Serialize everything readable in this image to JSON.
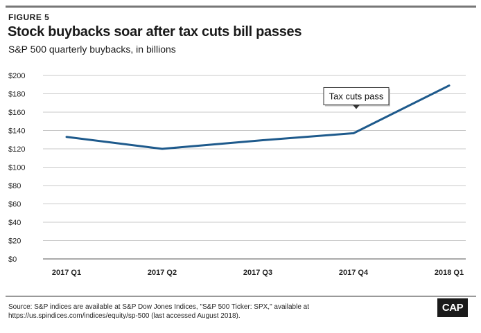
{
  "figure_label": "FIGURE 5",
  "source_note": "Source: S&P indices are available at S&P Dow Jones Indices, \"S&P 500 Ticker: SPX,\" available at https://us.spindices.com/indices/equity/sp-500 (last accessed August 2018).",
  "logo_text": "CAP",
  "colors": {
    "line": "#1e5a8c",
    "grid": "#c8c8c8"
  },
  "chart_data": {
    "type": "line",
    "title": "Stock buybacks soar after tax cuts bill passes",
    "subtitle": "S&P 500 quarterly buybacks, in billions",
    "categories": [
      "2017 Q1",
      "2017 Q2",
      "2017 Q3",
      "2017 Q4",
      "2018 Q1"
    ],
    "series": [
      {
        "values": [
          133,
          120,
          129,
          137,
          189
        ]
      }
    ],
    "ylim": [
      0,
      200
    ],
    "yticks": [
      0,
      20,
      40,
      60,
      80,
      100,
      120,
      140,
      160,
      180,
      200
    ],
    "ytick_labels": [
      "$0",
      "$20",
      "$40",
      "$60",
      "$80",
      "$100",
      "$120",
      "$140",
      "$160",
      "$180",
      "$200"
    ],
    "grid": true,
    "annotations": [
      {
        "text": "Tax cuts pass",
        "category": "2017 Q4",
        "y": 137
      }
    ]
  }
}
